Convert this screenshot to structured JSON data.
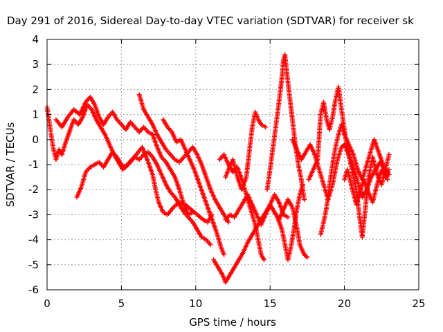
{
  "chart_data": {
    "type": "scatter",
    "title": "Day 291 of 2016, Sidereal Day-to-day VTEC variation (SDTVAR) for receiver sk",
    "xlabel": "GPS time / hours",
    "ylabel": "SDTVAR / TECUs",
    "xlim": [
      0,
      25
    ],
    "ylim": [
      -6,
      4
    ],
    "x_ticks": [
      0,
      5,
      10,
      15,
      20,
      25
    ],
    "y_ticks": [
      -6,
      -5,
      -4,
      -3,
      -2,
      -1,
      0,
      1,
      2,
      3,
      4
    ],
    "grid": true,
    "marker": "+",
    "color": "#ff0000",
    "series": [
      {
        "points": [
          [
            0.0,
            1.3
          ],
          [
            0.2,
            0.5
          ],
          [
            0.4,
            -0.3
          ],
          [
            0.6,
            -0.8
          ],
          [
            0.8,
            -0.4
          ],
          [
            1.0,
            -0.6
          ],
          [
            1.2,
            -0.2
          ],
          [
            1.5,
            0.3
          ],
          [
            1.8,
            0.8
          ],
          [
            2.1,
            0.6
          ],
          [
            2.4,
            0.9
          ],
          [
            2.7,
            1.4
          ],
          [
            3.0,
            1.2
          ],
          [
            3.3,
            0.8
          ],
          [
            3.6,
            0.5
          ],
          [
            3.9,
            0.2
          ],
          [
            4.2,
            -0.2
          ],
          [
            4.5,
            -0.6
          ],
          [
            4.8,
            -0.9
          ],
          [
            5.1,
            -1.2
          ],
          [
            5.4,
            -1.0
          ],
          [
            5.7,
            -0.8
          ],
          [
            6.0,
            -0.6
          ],
          [
            6.4,
            -0.3
          ],
          [
            6.8,
            -0.9
          ],
          [
            7.1,
            -1.4
          ],
          [
            7.3,
            -2.0
          ],
          [
            7.5,
            -2.5
          ],
          [
            7.8,
            -2.9
          ],
          [
            8.1,
            -3.0
          ],
          [
            8.5,
            -2.7
          ],
          [
            8.9,
            -2.5
          ],
          [
            9.3,
            -2.6
          ],
          [
            9.7,
            -2.8
          ],
          [
            10.1,
            -3.0
          ],
          [
            10.5,
            -3.2
          ],
          [
            10.8,
            -3.3
          ],
          [
            11.1,
            -3.0
          ]
        ]
      },
      {
        "points": [
          [
            0.6,
            0.8
          ],
          [
            1.0,
            0.5
          ],
          [
            1.4,
            0.9
          ],
          [
            1.8,
            1.2
          ],
          [
            2.2,
            1.0
          ],
          [
            2.6,
            1.5
          ],
          [
            2.9,
            1.7
          ],
          [
            3.2,
            1.4
          ],
          [
            3.5,
            0.9
          ],
          [
            3.8,
            0.6
          ],
          [
            4.1,
            0.9
          ],
          [
            4.4,
            1.1
          ],
          [
            4.7,
            0.8
          ],
          [
            5.0,
            0.6
          ],
          [
            5.3,
            0.4
          ],
          [
            5.6,
            0.7
          ],
          [
            5.9,
            0.5
          ],
          [
            6.2,
            0.3
          ],
          [
            6.5,
            0.5
          ],
          [
            6.8,
            0.3
          ],
          [
            7.1,
            0.2
          ],
          [
            7.4,
            -0.3
          ],
          [
            7.7,
            -0.7
          ],
          [
            8.0,
            -0.9
          ],
          [
            8.3,
            -1.2
          ],
          [
            8.6,
            -1.5
          ],
          [
            8.9,
            -2.0
          ],
          [
            9.2,
            -2.6
          ],
          [
            9.5,
            -3.0
          ],
          [
            9.8,
            -2.9
          ]
        ]
      },
      {
        "points": [
          [
            2.0,
            -2.3
          ],
          [
            2.3,
            -1.9
          ],
          [
            2.6,
            -1.3
          ],
          [
            2.9,
            -1.1
          ],
          [
            3.2,
            -1.0
          ],
          [
            3.5,
            -0.9
          ],
          [
            3.8,
            -1.1
          ],
          [
            4.1,
            -0.8
          ],
          [
            4.4,
            -0.5
          ],
          [
            4.7,
            -0.7
          ],
          [
            5.0,
            -1.0
          ],
          [
            5.3,
            -1.1
          ],
          [
            5.6,
            -0.9
          ],
          [
            5.9,
            -0.7
          ],
          [
            6.2,
            -0.8
          ],
          [
            6.5,
            -0.6
          ],
          [
            6.8,
            -0.5
          ],
          [
            7.1,
            -0.7
          ],
          [
            7.4,
            -1.0
          ],
          [
            7.7,
            -1.4
          ],
          [
            8.0,
            -1.8
          ],
          [
            8.3,
            -2.1
          ],
          [
            8.6,
            -2.3
          ],
          [
            8.9,
            -2.6
          ],
          [
            9.2,
            -2.9
          ],
          [
            9.5,
            -3.1
          ],
          [
            9.8,
            -3.3
          ],
          [
            10.1,
            -3.6
          ],
          [
            10.4,
            -3.9
          ],
          [
            10.7,
            -4.0
          ],
          [
            11.0,
            -4.2
          ]
        ]
      },
      {
        "points": [
          [
            6.2,
            1.8
          ],
          [
            6.5,
            1.2
          ],
          [
            6.8,
            0.9
          ],
          [
            7.1,
            0.6
          ],
          [
            7.4,
            0.2
          ],
          [
            7.7,
            -0.1
          ],
          [
            8.0,
            -0.4
          ],
          [
            8.3,
            -0.6
          ],
          [
            8.6,
            -0.8
          ],
          [
            8.9,
            -0.9
          ],
          [
            9.2,
            -0.7
          ],
          [
            9.5,
            -0.5
          ],
          [
            9.8,
            -0.3
          ],
          [
            10.1,
            -0.6
          ],
          [
            10.4,
            -1.0
          ],
          [
            10.7,
            -1.5
          ],
          [
            11.0,
            -2.0
          ],
          [
            11.3,
            -2.4
          ],
          [
            11.6,
            -2.7
          ],
          [
            11.9,
            -3.0
          ],
          [
            12.2,
            -3.3
          ]
        ]
      },
      {
        "points": [
          [
            7.8,
            0.8
          ],
          [
            8.1,
            0.5
          ],
          [
            8.4,
            0.3
          ],
          [
            8.7,
            -0.1
          ],
          [
            9.0,
            0.0
          ],
          [
            9.3,
            -0.4
          ],
          [
            9.6,
            -0.8
          ],
          [
            9.9,
            -1.2
          ],
          [
            10.2,
            -1.7
          ],
          [
            10.5,
            -2.2
          ],
          [
            10.8,
            -2.7
          ],
          [
            11.1,
            -3.2
          ],
          [
            11.4,
            -3.7
          ],
          [
            11.7,
            -4.3
          ],
          [
            11.9,
            -4.6
          ]
        ]
      },
      {
        "points": [
          [
            11.2,
            -4.8
          ],
          [
            11.5,
            -5.1
          ],
          [
            11.8,
            -5.4
          ],
          [
            12.0,
            -5.7
          ],
          [
            12.3,
            -5.4
          ],
          [
            12.6,
            -5.1
          ],
          [
            12.9,
            -4.8
          ],
          [
            13.2,
            -4.5
          ],
          [
            13.5,
            -4.1
          ],
          [
            13.8,
            -3.8
          ],
          [
            14.1,
            -3.5
          ],
          [
            14.4,
            -3.2
          ],
          [
            14.7,
            -2.9
          ],
          [
            15.0,
            -2.6
          ],
          [
            15.3,
            -2.2
          ],
          [
            15.6,
            -2.5
          ],
          [
            15.9,
            -3.0
          ],
          [
            16.2,
            -3.1
          ]
        ]
      },
      {
        "points": [
          [
            12.0,
            -3.2
          ],
          [
            12.3,
            -3.0
          ],
          [
            12.6,
            -3.1
          ],
          [
            12.9,
            -2.8
          ],
          [
            13.2,
            -2.5
          ],
          [
            13.5,
            -2.2
          ],
          [
            13.8,
            -2.6
          ],
          [
            14.1,
            -3.0
          ],
          [
            14.4,
            -3.4
          ],
          [
            14.7,
            -3.0
          ],
          [
            15.0,
            -2.6
          ],
          [
            15.3,
            -2.9
          ],
          [
            15.6,
            -3.2
          ],
          [
            15.9,
            -2.8
          ],
          [
            16.2,
            -2.4
          ],
          [
            16.5,
            -2.7
          ],
          [
            16.8,
            -3.5
          ],
          [
            17.0,
            -4.2
          ],
          [
            17.3,
            -4.6
          ],
          [
            17.5,
            -4.7
          ]
        ]
      },
      {
        "points": [
          [
            12.0,
            -1.5
          ],
          [
            12.2,
            -1.2
          ],
          [
            12.5,
            -0.8
          ],
          [
            12.8,
            -1.5
          ],
          [
            13.1,
            -2.0
          ],
          [
            13.4,
            -1.5
          ],
          [
            13.6,
            -0.5
          ],
          [
            13.8,
            0.5
          ],
          [
            14.0,
            1.1
          ],
          [
            14.2,
            0.8
          ],
          [
            14.4,
            0.6
          ],
          [
            14.7,
            0.5
          ]
        ]
      },
      {
        "points": [
          [
            11.6,
            -0.8
          ],
          [
            11.9,
            -0.6
          ],
          [
            12.2,
            -1.0
          ],
          [
            12.5,
            -1.3
          ],
          [
            12.8,
            -1.1
          ],
          [
            13.1,
            -1.6
          ],
          [
            13.4,
            -2.2
          ],
          [
            13.7,
            -2.8
          ],
          [
            14.0,
            -3.4
          ],
          [
            14.2,
            -4.0
          ],
          [
            14.4,
            -4.6
          ],
          [
            14.6,
            -4.8
          ]
        ]
      },
      {
        "points": [
          [
            14.8,
            -2.0
          ],
          [
            15.0,
            -1.2
          ],
          [
            15.2,
            -0.3
          ],
          [
            15.4,
            0.6
          ],
          [
            15.6,
            1.5
          ],
          [
            15.8,
            2.5
          ],
          [
            15.9,
            3.2
          ],
          [
            16.0,
            3.4
          ],
          [
            16.1,
            2.8
          ],
          [
            16.3,
            1.8
          ],
          [
            16.5,
            0.8
          ],
          [
            16.7,
            -0.2
          ],
          [
            16.9,
            -1.0
          ],
          [
            17.1,
            -1.6
          ],
          [
            17.3,
            -2.4
          ]
        ]
      },
      {
        "points": [
          [
            15.2,
            -2.8
          ],
          [
            15.5,
            -3.1
          ],
          [
            15.8,
            -3.6
          ],
          [
            16.0,
            -4.2
          ],
          [
            16.2,
            -4.8
          ],
          [
            16.4,
            -4.3
          ],
          [
            16.6,
            -3.6
          ],
          [
            16.8,
            -2.8
          ],
          [
            17.0,
            -2.2
          ],
          [
            17.2,
            -1.8
          ]
        ]
      },
      {
        "points": [
          [
            16.5,
            0.0
          ],
          [
            16.8,
            -0.4
          ],
          [
            17.1,
            -0.8
          ],
          [
            17.4,
            -0.5
          ],
          [
            17.7,
            -0.2
          ],
          [
            18.0,
            -0.6
          ],
          [
            18.3,
            -1.2
          ],
          [
            18.6,
            -1.8
          ],
          [
            18.9,
            -2.4
          ],
          [
            19.2,
            -1.8
          ],
          [
            19.5,
            -0.9
          ],
          [
            19.8,
            -0.3
          ],
          [
            20.0,
            -0.2
          ],
          [
            20.3,
            -0.6
          ],
          [
            20.6,
            -1.1
          ],
          [
            20.9,
            -1.7
          ],
          [
            21.2,
            -2.3
          ],
          [
            21.5,
            -2.0
          ],
          [
            21.8,
            -1.5
          ],
          [
            22.1,
            -1.2
          ],
          [
            22.4,
            -0.9
          ],
          [
            22.7,
            -1.2
          ],
          [
            23.0,
            -1.4
          ]
        ]
      },
      {
        "points": [
          [
            17.6,
            -1.6
          ],
          [
            17.9,
            -1.2
          ],
          [
            18.2,
            -0.8
          ],
          [
            18.4,
            1.0
          ],
          [
            18.6,
            1.5
          ],
          [
            18.8,
            0.8
          ],
          [
            19.0,
            0.4
          ],
          [
            19.2,
            0.9
          ],
          [
            19.4,
            1.6
          ],
          [
            19.6,
            2.1
          ],
          [
            19.8,
            1.2
          ],
          [
            20.0,
            0.4
          ],
          [
            20.2,
            -0.4
          ],
          [
            20.5,
            -1.2
          ],
          [
            20.8,
            -2.0
          ],
          [
            21.0,
            -3.0
          ],
          [
            21.2,
            -3.9
          ],
          [
            21.4,
            -2.8
          ],
          [
            21.6,
            -1.6
          ],
          [
            21.9,
            -0.7
          ],
          [
            22.2,
            -1.4
          ],
          [
            22.5,
            -1.8
          ],
          [
            22.8,
            -1.1
          ],
          [
            23.0,
            -0.6
          ]
        ]
      },
      {
        "points": [
          [
            18.4,
            -3.8
          ],
          [
            18.6,
            -3.3
          ],
          [
            18.8,
            -2.7
          ],
          [
            19.0,
            -1.8
          ],
          [
            19.2,
            -1.0
          ],
          [
            19.4,
            -0.3
          ],
          [
            19.6,
            0.2
          ],
          [
            19.8,
            0.6
          ],
          [
            20.0,
            0.2
          ],
          [
            20.3,
            -0.2
          ],
          [
            20.6,
            -0.6
          ],
          [
            20.9,
            -1.2
          ],
          [
            21.2,
            -1.6
          ],
          [
            21.5,
            -1.0
          ],
          [
            21.8,
            -0.4
          ],
          [
            22.0,
            0.0
          ],
          [
            22.3,
            -0.5
          ],
          [
            22.6,
            -1.0
          ],
          [
            22.9,
            -1.6
          ]
        ]
      },
      {
        "points": [
          [
            20.0,
            -1.6
          ],
          [
            20.2,
            -1.2
          ],
          [
            20.5,
            -1.9
          ],
          [
            20.8,
            -2.6
          ],
          [
            21.0,
            -2.2
          ],
          [
            21.3,
            -1.6
          ],
          [
            21.6,
            -2.1
          ],
          [
            21.9,
            -2.5
          ],
          [
            22.2,
            -1.8
          ],
          [
            22.5,
            -1.2
          ],
          [
            22.8,
            -1.5
          ],
          [
            23.0,
            -1.2
          ]
        ]
      }
    ]
  }
}
